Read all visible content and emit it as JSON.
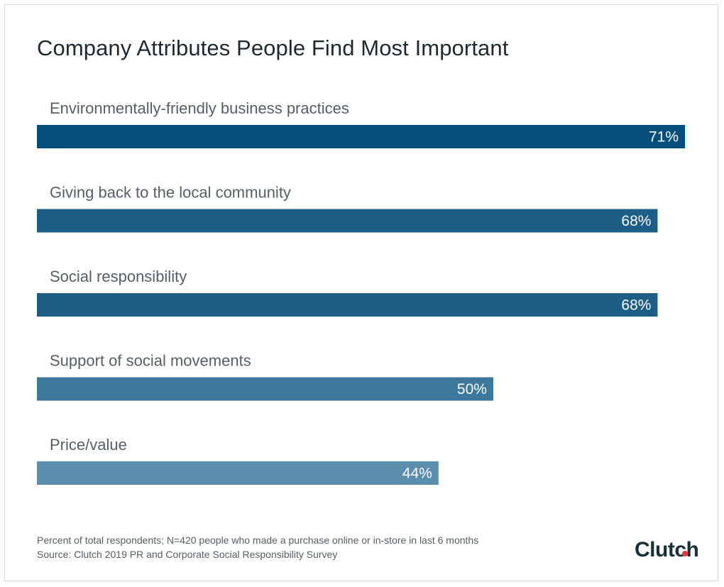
{
  "chart_data": {
    "type": "bar",
    "orientation": "horizontal",
    "title": "Company Attributes People Find Most Important",
    "categories": [
      "Environmentally-friendly business practices",
      "Giving back to the local community",
      "Social responsibility",
      "Support of social movements",
      "Price/value"
    ],
    "values": [
      71,
      68,
      68,
      50,
      44
    ],
    "value_labels": [
      "71%",
      "68%",
      "68%",
      "50%",
      "44%"
    ],
    "bar_colors": [
      "#034f79",
      "#1c5e86",
      "#1c5e86",
      "#3c789c",
      "#5b8ead"
    ],
    "xlim": [
      0,
      71
    ],
    "grid": false,
    "legend": "none"
  },
  "footnote": {
    "line1": "Percent of total respondents; N=420 people who made a purchase online or in-store in last 6 months",
    "line2": "Source: Clutch 2019 PR and Corporate Social Responsibility Survey"
  },
  "logo": {
    "text": "Clutch",
    "accent_color": "#e6393e"
  }
}
